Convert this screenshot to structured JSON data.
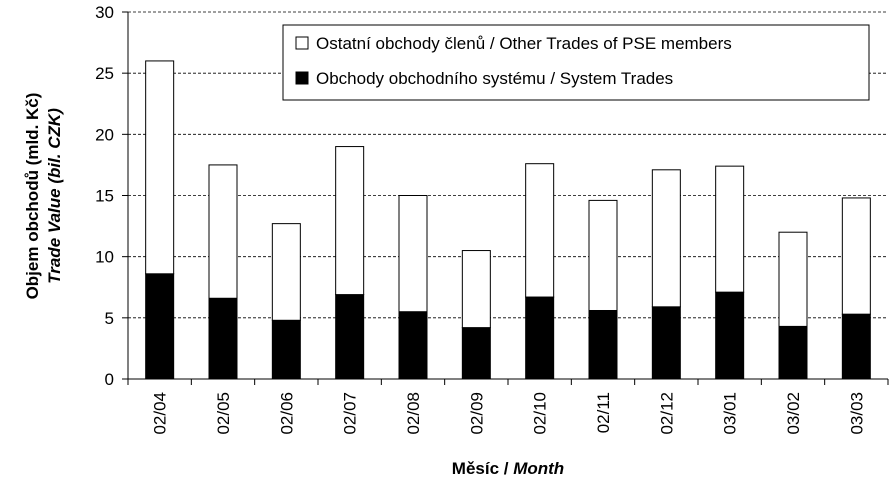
{
  "chart_data": {
    "type": "stacked_bar",
    "y_label": [
      "Objem obchodů (mld. Kč)",
      "Trade Value (bil. CZK)"
    ],
    "x_label": {
      "text": "Měsíc /",
      "italic": "Month"
    },
    "categories": [
      "02/04",
      "02/05",
      "02/06",
      "02/07",
      "02/08",
      "02/09",
      "02/10",
      "02/11",
      "02/12",
      "03/01",
      "03/02",
      "03/03"
    ],
    "series": [
      {
        "name": "Ostatní obchody členů / Other Trades of PSE members",
        "color": "#ffffff",
        "values": [
          17.4,
          10.9,
          7.9,
          12.1,
          9.5,
          6.3,
          10.9,
          9.0,
          11.2,
          10.3,
          7.7,
          9.5
        ]
      },
      {
        "name": "Obchody obchodního systému / System Trades",
        "color": "#000000",
        "values": [
          8.6,
          6.6,
          4.8,
          6.9,
          5.5,
          4.2,
          6.7,
          5.6,
          5.9,
          7.1,
          4.3,
          5.3
        ]
      }
    ],
    "ylim": [
      0,
      30
    ],
    "yticks": [
      0,
      5,
      10,
      15,
      20,
      25,
      30
    ],
    "grid": true,
    "legend": "top-right"
  }
}
